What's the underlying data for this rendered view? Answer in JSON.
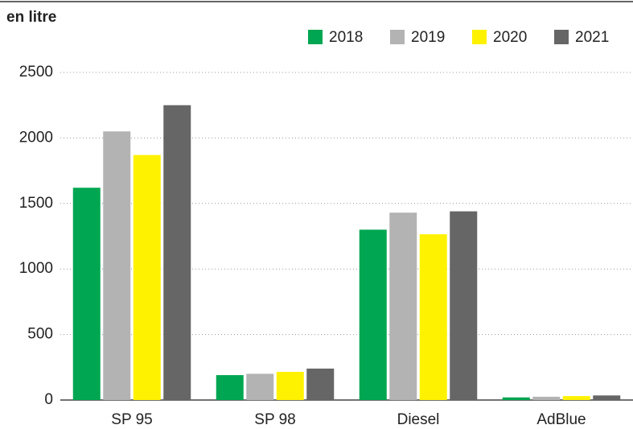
{
  "chart_data": {
    "type": "bar",
    "title": "en litre",
    "categories": [
      "SP 95",
      "SP 98",
      "Diesel",
      "AdBlue"
    ],
    "series": [
      {
        "name": "2018",
        "color": "#00a651",
        "values": [
          1620,
          190,
          1300,
          20
        ]
      },
      {
        "name": "2019",
        "color": "#b3b3b3",
        "values": [
          2050,
          200,
          1430,
          25
        ]
      },
      {
        "name": "2020",
        "color": "#fff200",
        "values": [
          1870,
          215,
          1265,
          30
        ]
      },
      {
        "name": "2021",
        "color": "#666666",
        "values": [
          2250,
          240,
          1440,
          35
        ]
      }
    ],
    "ylim": [
      0,
      2500
    ],
    "yticks": [
      0,
      500,
      1000,
      1500,
      2000,
      2500
    ],
    "grid": true,
    "legend": "top-right"
  }
}
